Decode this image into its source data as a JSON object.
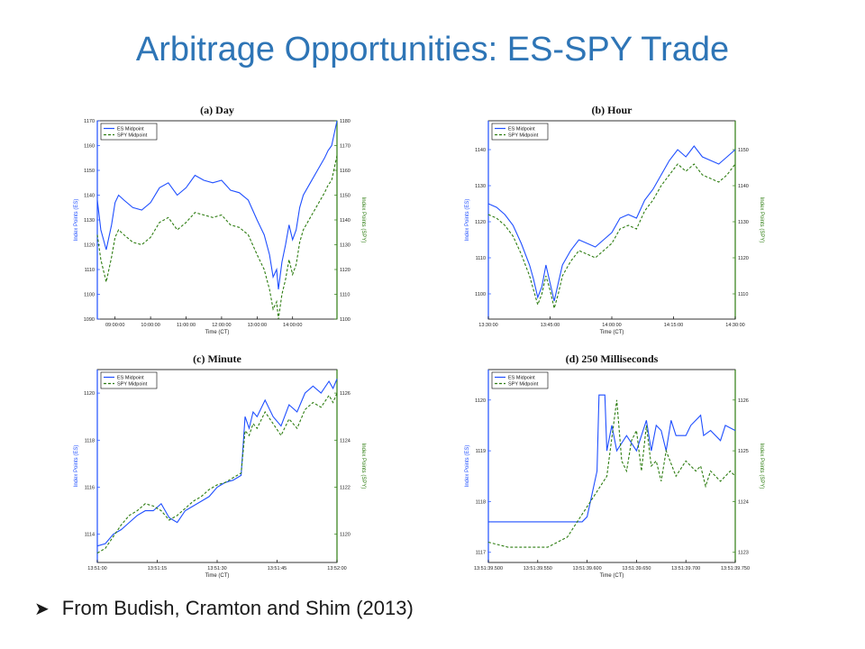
{
  "slide": {
    "title": "Arbitrage Opportunities: ES-SPY Trade",
    "footer_bullet_icon": "arrow-bullet-icon",
    "footer": "From Budish, Cramton and Shim (2013)"
  },
  "colors": {
    "title": "#2e75b6",
    "es": "#1f4fff",
    "spy": "#2e7d12",
    "frame": "#000000"
  },
  "chart_data": [
    {
      "type": "line",
      "title": "(a) Day",
      "xlabel": "Time (CT)",
      "ylabel": "Index Points (ES)",
      "y2label": "Index Points (SPY)",
      "legend": [
        "ES Midpoint",
        "SPY Midpoint"
      ],
      "legend_position": "top-left",
      "xlim": [
        8.5,
        15.25
      ],
      "ylim": [
        1090,
        1170
      ],
      "y2lim": [
        1100,
        1180
      ],
      "xticks": [
        9,
        10,
        11,
        12,
        13,
        14
      ],
      "xtick_labels": [
        "09:00:00",
        "10:00:00",
        "11:00:00",
        "12:00:00",
        "13:00:00",
        "14:00:00"
      ],
      "yticks": [
        1090,
        1100,
        1110,
        1120,
        1130,
        1140,
        1150,
        1160,
        1170
      ],
      "ytick_labels": [
        "1090",
        "1100",
        "1110",
        "1120",
        "1130",
        "1140",
        "1150",
        "1160",
        "1170"
      ],
      "y2ticks": [
        1100,
        1110,
        1120,
        1130,
        1140,
        1150,
        1160,
        1170,
        1180
      ],
      "y2tick_labels": [
        "1100",
        "1110",
        "1120",
        "1130",
        "1140",
        "1150",
        "1160",
        "1170",
        "1180"
      ],
      "series": [
        {
          "name": "ES Midpoint",
          "axis": "left",
          "style": "solid",
          "x": [
            8.5,
            8.6,
            8.75,
            8.9,
            9.0,
            9.1,
            9.25,
            9.5,
            9.75,
            10.0,
            10.25,
            10.5,
            10.75,
            11.0,
            11.25,
            11.5,
            11.75,
            12.0,
            12.25,
            12.5,
            12.75,
            13.0,
            13.2,
            13.35,
            13.45,
            13.55,
            13.6,
            13.7,
            13.8,
            13.9,
            14.0,
            14.1,
            14.2,
            14.3,
            14.5,
            14.7,
            14.9,
            15.0,
            15.1,
            15.25
          ],
          "y": [
            1138,
            1126,
            1118,
            1128,
            1137,
            1140,
            1138,
            1135,
            1134,
            1137,
            1143,
            1145,
            1140,
            1143,
            1148,
            1146,
            1145,
            1146,
            1142,
            1141,
            1138,
            1130,
            1124,
            1116,
            1107,
            1110,
            1102,
            1113,
            1120,
            1128,
            1122,
            1126,
            1135,
            1140,
            1145,
            1150,
            1155,
            1158,
            1160,
            1170
          ]
        },
        {
          "name": "SPY Midpoint",
          "axis": "right",
          "style": "dashed",
          "x": [
            8.5,
            8.6,
            8.75,
            8.9,
            9.0,
            9.1,
            9.25,
            9.5,
            9.75,
            10.0,
            10.25,
            10.5,
            10.75,
            11.0,
            11.25,
            11.5,
            11.75,
            12.0,
            12.25,
            12.5,
            12.75,
            13.0,
            13.2,
            13.35,
            13.45,
            13.55,
            13.6,
            13.7,
            13.8,
            13.9,
            14.0,
            14.1,
            14.2,
            14.3,
            14.5,
            14.7,
            14.9,
            15.0,
            15.1,
            15.25
          ],
          "y": [
            1134,
            1124,
            1115,
            1125,
            1133,
            1136,
            1134,
            1131,
            1130,
            1133,
            1139,
            1141,
            1136,
            1139,
            1143,
            1142,
            1141,
            1142,
            1138,
            1137,
            1134,
            1126,
            1120,
            1112,
            1104,
            1107,
            1100,
            1110,
            1116,
            1124,
            1118,
            1122,
            1131,
            1136,
            1141,
            1146,
            1151,
            1154,
            1156,
            1166
          ]
        }
      ]
    },
    {
      "type": "line",
      "title": "(b) Hour",
      "xlabel": "Time (CT)",
      "ylabel": "Index Points (ES)",
      "y2label": "Index Points (SPY)",
      "legend": [
        "ES Midpoint",
        "SPY Midpoint"
      ],
      "legend_position": "top-left",
      "xlim": [
        0,
        60
      ],
      "ylim": [
        1093,
        1148
      ],
      "y2lim": [
        1103,
        1158
      ],
      "xticks": [
        0,
        15,
        30,
        45,
        60
      ],
      "xtick_labels": [
        "13:30:00",
        "13:45:00",
        "14:00:00",
        "14:15:00",
        "14:30:00"
      ],
      "yticks": [
        1100,
        1110,
        1120,
        1130,
        1140
      ],
      "ytick_labels": [
        "1100",
        "1110",
        "1120",
        "1130",
        "1140"
      ],
      "y2ticks": [
        1110,
        1120,
        1130,
        1140,
        1150
      ],
      "y2tick_labels": [
        "1110",
        "1120",
        "1130",
        "1140",
        "1150"
      ],
      "series": [
        {
          "name": "ES Midpoint",
          "axis": "left",
          "style": "solid",
          "x": [
            0,
            2,
            4,
            6,
            8,
            10,
            11,
            12,
            13,
            14,
            15,
            16,
            17,
            18,
            20,
            22,
            24,
            26,
            28,
            30,
            32,
            34,
            36,
            38,
            40,
            42,
            44,
            46,
            48,
            50,
            52,
            54,
            56,
            58,
            60
          ],
          "y": [
            1125,
            1124,
            1122,
            1119,
            1114,
            1108,
            1104,
            1099,
            1102,
            1108,
            1103,
            1098,
            1103,
            1108,
            1112,
            1115,
            1114,
            1113,
            1115,
            1117,
            1121,
            1122,
            1121,
            1126,
            1129,
            1133,
            1137,
            1140,
            1138,
            1141,
            1138,
            1137,
            1136,
            1138,
            1140
          ]
        },
        {
          "name": "SPY Midpoint",
          "axis": "right",
          "style": "dashed",
          "x": [
            0,
            2,
            4,
            6,
            8,
            10,
            11,
            12,
            13,
            14,
            15,
            16,
            17,
            18,
            20,
            22,
            24,
            26,
            28,
            30,
            32,
            34,
            36,
            38,
            40,
            42,
            44,
            46,
            48,
            50,
            52,
            54,
            56,
            58,
            60
          ],
          "y": [
            1132,
            1131,
            1129,
            1126,
            1121,
            1115,
            1111,
            1107,
            1110,
            1115,
            1111,
            1106,
            1110,
            1115,
            1119,
            1122,
            1121,
            1120,
            1122,
            1124,
            1128,
            1129,
            1128,
            1133,
            1136,
            1140,
            1143,
            1146,
            1144,
            1146,
            1143,
            1142,
            1141,
            1143,
            1146
          ]
        }
      ]
    },
    {
      "type": "line",
      "title": "(c) Minute",
      "xlabel": "Time (CT)",
      "ylabel": "Index Points (ES)",
      "y2label": "Index Points (SPY)",
      "legend": [
        "ES Midpoint",
        "SPY Midpoint"
      ],
      "legend_position": "top-left",
      "xlim": [
        0,
        60
      ],
      "ylim": [
        1112.8,
        1121
      ],
      "y2lim": [
        1118.8,
        1127
      ],
      "xticks": [
        0,
        15,
        30,
        45,
        60
      ],
      "xtick_labels": [
        "13:51:00",
        "13:51:15",
        "13:51:30",
        "13:51:45",
        "13:52:00"
      ],
      "yticks": [
        1114,
        1116,
        1118,
        1120
      ],
      "ytick_labels": [
        "1114",
        "1116",
        "1118",
        "1120"
      ],
      "y2ticks": [
        1120,
        1122,
        1124,
        1126
      ],
      "y2tick_labels": [
        "1120",
        "1122",
        "1124",
        "1126"
      ],
      "series": [
        {
          "name": "ES Midpoint",
          "axis": "left",
          "style": "solid",
          "x": [
            0,
            2,
            4,
            6,
            8,
            10,
            12,
            14,
            16,
            18,
            20,
            22,
            24,
            26,
            28,
            30,
            32,
            34,
            36,
            37,
            38,
            39,
            40,
            42,
            44,
            46,
            48,
            50,
            52,
            54,
            56,
            58,
            59,
            60
          ],
          "y": [
            1113.5,
            1113.6,
            1114,
            1114.2,
            1114.5,
            1114.8,
            1115,
            1115,
            1115.3,
            1114.7,
            1114.5,
            1115,
            1115.2,
            1115.4,
            1115.6,
            1116,
            1116.2,
            1116.3,
            1116.5,
            1119,
            1118.5,
            1119.2,
            1119,
            1119.7,
            1119,
            1118.6,
            1119.5,
            1119.2,
            1120,
            1120.3,
            1120,
            1120.5,
            1120.2,
            1120.6
          ]
        },
        {
          "name": "SPY Midpoint",
          "axis": "right",
          "style": "dashed",
          "x": [
            0,
            2,
            4,
            6,
            8,
            10,
            12,
            14,
            16,
            18,
            20,
            22,
            24,
            26,
            28,
            30,
            32,
            34,
            36,
            37,
            38,
            39,
            40,
            42,
            44,
            46,
            48,
            50,
            52,
            54,
            56,
            58,
            59,
            60
          ],
          "y": [
            1119.2,
            1119.4,
            1119.9,
            1120.4,
            1120.8,
            1121,
            1121.3,
            1121.2,
            1121,
            1120.6,
            1120.8,
            1121.1,
            1121.4,
            1121.6,
            1121.9,
            1122.1,
            1122.2,
            1122.4,
            1122.6,
            1124.4,
            1124.2,
            1124.7,
            1124.5,
            1125.2,
            1124.7,
            1124.2,
            1124.9,
            1124.5,
            1125.3,
            1125.6,
            1125.4,
            1125.9,
            1125.6,
            1126
          ]
        }
      ]
    },
    {
      "type": "line",
      "title": "(d) 250 Milliseconds",
      "xlabel": "Time (CT)",
      "ylabel": "Index Points (ES)",
      "y2label": "Index Points (SPY)",
      "legend": [
        "ES Midpoint",
        "SPY Midpoint"
      ],
      "legend_position": "top-left",
      "xlim": [
        0,
        250
      ],
      "ylim": [
        1116.8,
        1120.6
      ],
      "y2lim": [
        1122.8,
        1126.6
      ],
      "xticks": [
        0,
        50,
        100,
        150,
        200,
        250
      ],
      "xtick_labels": [
        "13:51:39.500",
        "13:51:39.550",
        "13:51:39.600",
        "13:51:39.650",
        "13:51:39.700",
        "13:51:39.750"
      ],
      "yticks": [
        1117,
        1118,
        1119,
        1120
      ],
      "ytick_labels": [
        "1117",
        "1118",
        "1119",
        "1120"
      ],
      "y2ticks": [
        1123,
        1124,
        1125,
        1126
      ],
      "y2tick_labels": [
        "1123",
        "1124",
        "1125",
        "1126"
      ],
      "series": [
        {
          "name": "ES Midpoint",
          "axis": "left",
          "style": "solid",
          "x": [
            0,
            80,
            95,
            100,
            110,
            112,
            118,
            120,
            125,
            130,
            140,
            150,
            160,
            165,
            170,
            175,
            180,
            185,
            190,
            200,
            205,
            215,
            218,
            225,
            235,
            240,
            250
          ],
          "y": [
            1117.6,
            1117.6,
            1117.6,
            1117.7,
            1118.6,
            1120.1,
            1120.1,
            1119.0,
            1119.5,
            1119.0,
            1119.3,
            1119.0,
            1119.6,
            1119.0,
            1119.5,
            1119.4,
            1119.0,
            1119.6,
            1119.3,
            1119.3,
            1119.5,
            1119.7,
            1119.3,
            1119.4,
            1119.2,
            1119.5,
            1119.4
          ]
        },
        {
          "name": "SPY Midpoint",
          "axis": "right",
          "style": "dashed",
          "x": [
            0,
            20,
            60,
            80,
            90,
            100,
            110,
            120,
            130,
            135,
            140,
            145,
            150,
            155,
            160,
            165,
            170,
            175,
            180,
            190,
            200,
            205,
            210,
            215,
            220,
            225,
            235,
            245,
            250
          ],
          "y": [
            1123.2,
            1123.1,
            1123.1,
            1123.3,
            1123.6,
            1123.9,
            1124.2,
            1124.5,
            1126.0,
            1124.8,
            1124.6,
            1125.2,
            1125.4,
            1124.6,
            1125.5,
            1124.7,
            1124.8,
            1124.4,
            1125.0,
            1124.5,
            1124.8,
            1124.7,
            1124.6,
            1124.7,
            1124.3,
            1124.6,
            1124.4,
            1124.6,
            1124.5
          ]
        }
      ]
    }
  ]
}
